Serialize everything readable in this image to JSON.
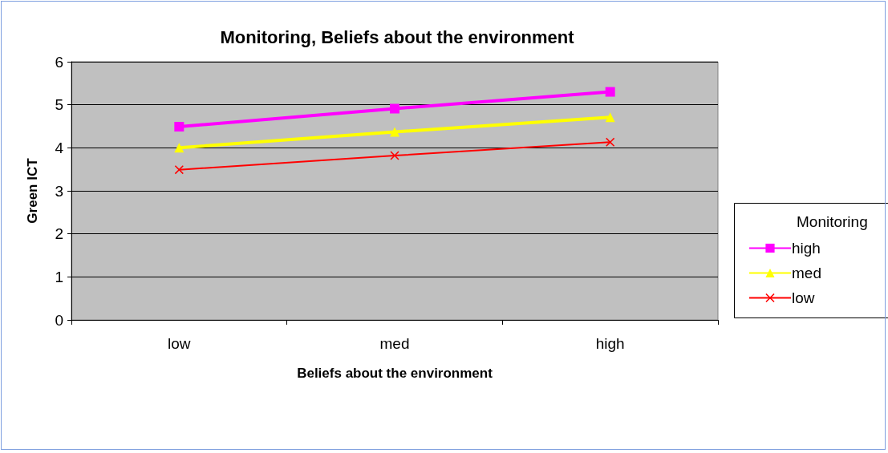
{
  "chart_data": {
    "type": "line",
    "title": "Monitoring, Beliefs about the environment",
    "xlabel": "Beliefs about the environment",
    "ylabel": "Green ICT",
    "legend_title": "Monitoring",
    "categories": [
      "low",
      "med",
      "high"
    ],
    "series": [
      {
        "name": "high",
        "color": "#ff00ff",
        "marker": "square",
        "values": [
          4.49,
          4.91,
          5.3
        ]
      },
      {
        "name": "med",
        "color": "#ffff00",
        "marker": "triangle",
        "values": [
          4.0,
          4.37,
          4.71
        ]
      },
      {
        "name": "low",
        "color": "#ff0000",
        "marker": "cross",
        "values": [
          3.49,
          3.82,
          4.13
        ]
      }
    ],
    "ylim": [
      0,
      6
    ],
    "yticks": [
      0,
      1,
      2,
      3,
      4,
      5,
      6
    ],
    "grid": "y",
    "legend": "right"
  }
}
